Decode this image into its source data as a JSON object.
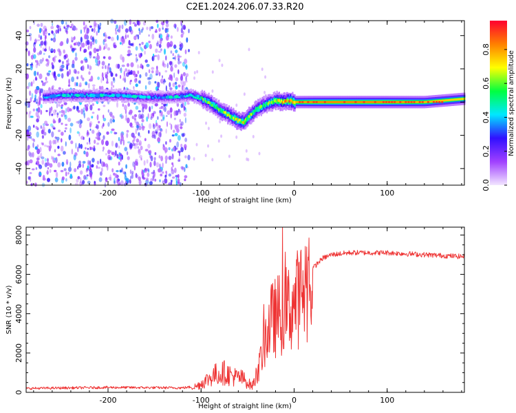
{
  "figure": {
    "title": "C2E1.2024.206.07.33.R20"
  },
  "chart_data": [
    {
      "type": "heatmap",
      "xlabel": "Height of straight line (km)",
      "ylabel": "Frequency (Hz)",
      "colorbar_label": "Normalized spectral amplitude",
      "xlim": [
        -288,
        183
      ],
      "ylim": [
        -50,
        49
      ],
      "x_ticks": [
        -200,
        -100,
        0,
        100
      ],
      "y_ticks": [
        -40,
        -20,
        0,
        20,
        40
      ],
      "colorbar_range": [
        0,
        0.97
      ],
      "colorbar_ticks": [
        0.0,
        0.2,
        0.4,
        0.6,
        0.8
      ],
      "colormap": [
        "#f2e6ff",
        "#a040ff",
        "#3010ff",
        "#00e8ff",
        "#00ff40",
        "#ffff00",
        "#ff8000",
        "#ff0030"
      ],
      "noise_region_x": [
        -288,
        -113
      ],
      "ridge": {
        "x": [
          -270,
          -250,
          -220,
          -190,
          -160,
          -130,
          -112,
          -100,
          -90,
          -80,
          -70,
          -62,
          -55,
          -48,
          -40,
          -30,
          -20,
          -12,
          -5,
          0,
          20,
          60,
          100,
          140,
          183
        ],
        "frequency": [
          3,
          4,
          4,
          4,
          3,
          3,
          4,
          2,
          -1,
          -5,
          -8,
          -11,
          -12,
          -8,
          -4,
          -1,
          1,
          0,
          1,
          0,
          0,
          0,
          0,
          0,
          2
        ],
        "amplitude": [
          0.35,
          0.4,
          0.4,
          0.38,
          0.35,
          0.35,
          0.45,
          0.55,
          0.6,
          0.62,
          0.65,
          0.7,
          0.72,
          0.65,
          0.6,
          0.6,
          0.7,
          0.75,
          0.78,
          0.8,
          0.85,
          0.85,
          0.85,
          0.8,
          0.75
        ]
      }
    },
    {
      "type": "line",
      "xlabel": "Height of straight line (km)",
      "ylabel": "SNR (10 * v/v)",
      "xlim": [
        -288,
        183
      ],
      "ylim": [
        0,
        8400
      ],
      "x_ticks": [
        -200,
        -100,
        0,
        100
      ],
      "y_ticks": [
        0,
        2000,
        4000,
        6000,
        8000
      ],
      "color": "#ee3333",
      "trend": {
        "x": [
          -288,
          -200,
          -120,
          -105,
          -95,
          -85,
          -75,
          -65,
          -55,
          -45,
          -38,
          -32,
          -25,
          -15,
          -5,
          0,
          10,
          20,
          30,
          40,
          60,
          100,
          140,
          183
        ],
        "y": [
          200,
          250,
          230,
          300,
          600,
          900,
          1000,
          800,
          700,
          300,
          1200,
          2600,
          3600,
          4000,
          4300,
          4500,
          5200,
          6300,
          6800,
          7000,
          7100,
          7100,
          7000,
          6900
        ]
      }
    }
  ]
}
